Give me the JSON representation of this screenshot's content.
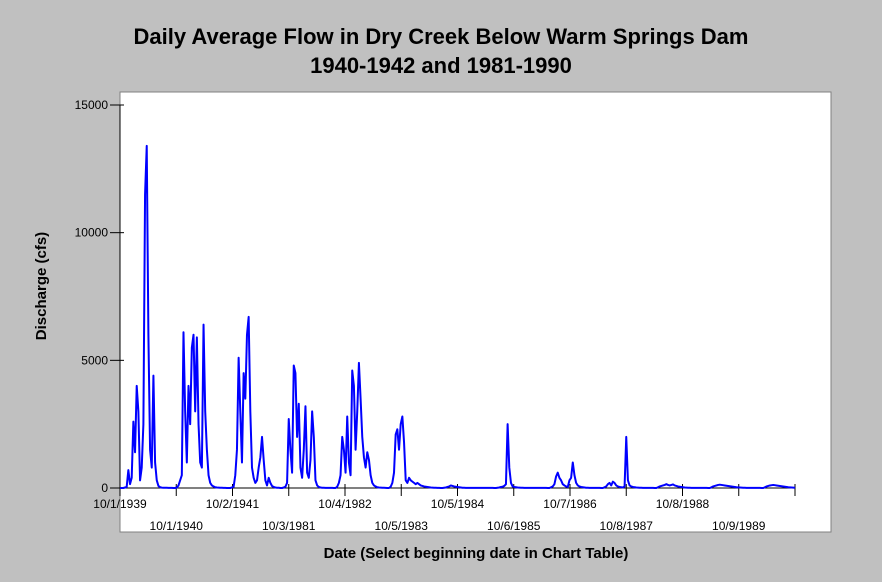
{
  "chart_data": {
    "type": "line",
    "title": "Daily Average Flow in Dry Creek Below Warm Springs Dam",
    "subtitle": "1940-1942 and 1981-1990",
    "xlabel": "Date (Select beginning date in Chart Table)",
    "ylabel": "Discharge (cfs)",
    "ylim": [
      0,
      15000
    ],
    "y_ticks": [
      0,
      5000,
      10000,
      15000
    ],
    "x_tick_labels": [
      "10/1/1939",
      "10/1/1940",
      "10/2/1941",
      "10/3/1981",
      "10/4/1982",
      "10/5/1983",
      "10/5/1984",
      "10/6/1985",
      "10/7/1986",
      "10/8/1987",
      "10/8/1988",
      "10/9/1989"
    ],
    "grid": false,
    "line_color": "#0000ff",
    "plot_background": "#ffffff",
    "series": [
      {
        "values": [
          0,
          0,
          0,
          20,
          40,
          700,
          150,
          400,
          2600,
          1400,
          4000,
          3000,
          300,
          800,
          2500,
          11500,
          13400,
          6000,
          1500,
          800,
          4400,
          1000,
          300,
          80,
          30,
          15,
          10,
          8,
          8,
          6,
          5,
          5,
          0,
          0,
          20,
          100,
          300,
          500,
          6100,
          3000,
          1000,
          4000,
          2500,
          5500,
          6000,
          3000,
          5900,
          2500,
          1000,
          800,
          6400,
          3000,
          1500,
          500,
          200,
          100,
          60,
          30,
          20,
          15,
          10,
          8,
          6,
          5,
          0,
          0,
          0,
          20,
          50,
          500,
          1500,
          5100,
          3000,
          1000,
          4500,
          3500,
          6000,
          6700,
          3000,
          800,
          400,
          200,
          300,
          800,
          1200,
          2000,
          1100,
          300,
          100,
          400,
          200,
          80,
          40,
          20,
          10,
          8,
          0,
          0,
          20,
          50,
          200,
          2700,
          1500,
          600,
          4800,
          4500,
          2000,
          3300,
          800,
          400,
          1500,
          3200,
          600,
          400,
          1100,
          3000,
          2000,
          300,
          100,
          40,
          20,
          10,
          8,
          6,
          5,
          5,
          5,
          5,
          0,
          0,
          50,
          200,
          500,
          2000,
          1500,
          600,
          2800,
          1000,
          500,
          4600,
          4000,
          1500,
          3000,
          4900,
          3500,
          2000,
          1200,
          800,
          1400,
          1100,
          500,
          200,
          100,
          60,
          30,
          20,
          15,
          10,
          8,
          6,
          0,
          0,
          50,
          200,
          600,
          2100,
          2300,
          1500,
          2500,
          2800,
          1800,
          300,
          200,
          400,
          300,
          250,
          200,
          150,
          200,
          150,
          100,
          80,
          60,
          50,
          40,
          30,
          20,
          15,
          10,
          8,
          6,
          5,
          0,
          0,
          10,
          20,
          40,
          60,
          100,
          80,
          60,
          50,
          40,
          30,
          20,
          10,
          8,
          6,
          5,
          5,
          5,
          5,
          5,
          5,
          5,
          5,
          5,
          5,
          5,
          5,
          5,
          5,
          5,
          5,
          0,
          0,
          10,
          20,
          40,
          50,
          80,
          150,
          2500,
          800,
          200,
          60,
          40,
          30,
          20,
          15,
          10,
          8,
          6,
          5,
          5,
          5,
          5,
          5,
          5,
          5,
          5,
          5,
          5,
          5,
          5,
          5,
          0,
          0,
          30,
          60,
          150,
          450,
          600,
          400,
          300,
          150,
          100,
          60,
          40,
          300,
          400,
          1000,
          500,
          200,
          100,
          60,
          40,
          30,
          20,
          10,
          8,
          6,
          5,
          5,
          5,
          5,
          5,
          5,
          0,
          0,
          30,
          60,
          150,
          200,
          100,
          250,
          200,
          100,
          60,
          40,
          30,
          20,
          60,
          2000,
          300,
          100,
          60,
          40,
          30,
          20,
          15,
          10,
          8,
          6,
          5,
          5,
          5,
          5,
          5,
          5,
          0,
          0,
          30,
          60,
          80,
          100,
          120,
          150,
          120,
          100,
          120,
          140,
          100,
          80,
          60,
          50,
          40,
          30,
          20,
          15,
          10,
          8,
          6,
          5,
          5,
          5,
          5,
          5,
          5,
          5,
          5,
          5,
          0,
          0,
          30,
          60,
          80,
          100,
          120,
          130,
          120,
          110,
          100,
          90,
          80,
          70,
          60,
          50,
          40,
          30,
          25,
          20,
          15,
          10,
          8,
          6,
          5,
          5,
          5,
          5,
          5,
          5,
          5,
          5,
          0,
          0,
          30,
          60,
          80,
          100,
          110,
          120,
          110,
          100,
          90,
          80,
          70,
          60,
          50,
          40,
          30,
          25,
          20,
          15,
          10
        ]
      }
    ]
  }
}
